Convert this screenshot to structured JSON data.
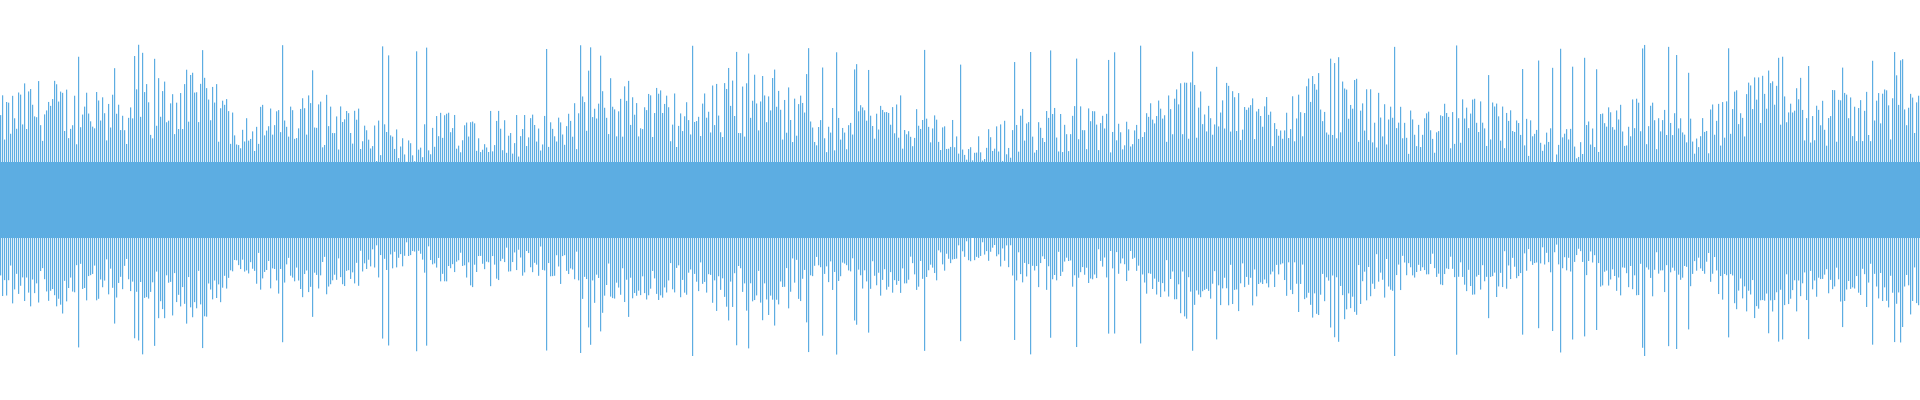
{
  "waveform": {
    "type": "audio-waveform",
    "color": "#5dade2",
    "background": "#ffffff",
    "style": "mirrored vertical bars",
    "peak_level": 0.78,
    "typical_level": 0.45
  }
}
